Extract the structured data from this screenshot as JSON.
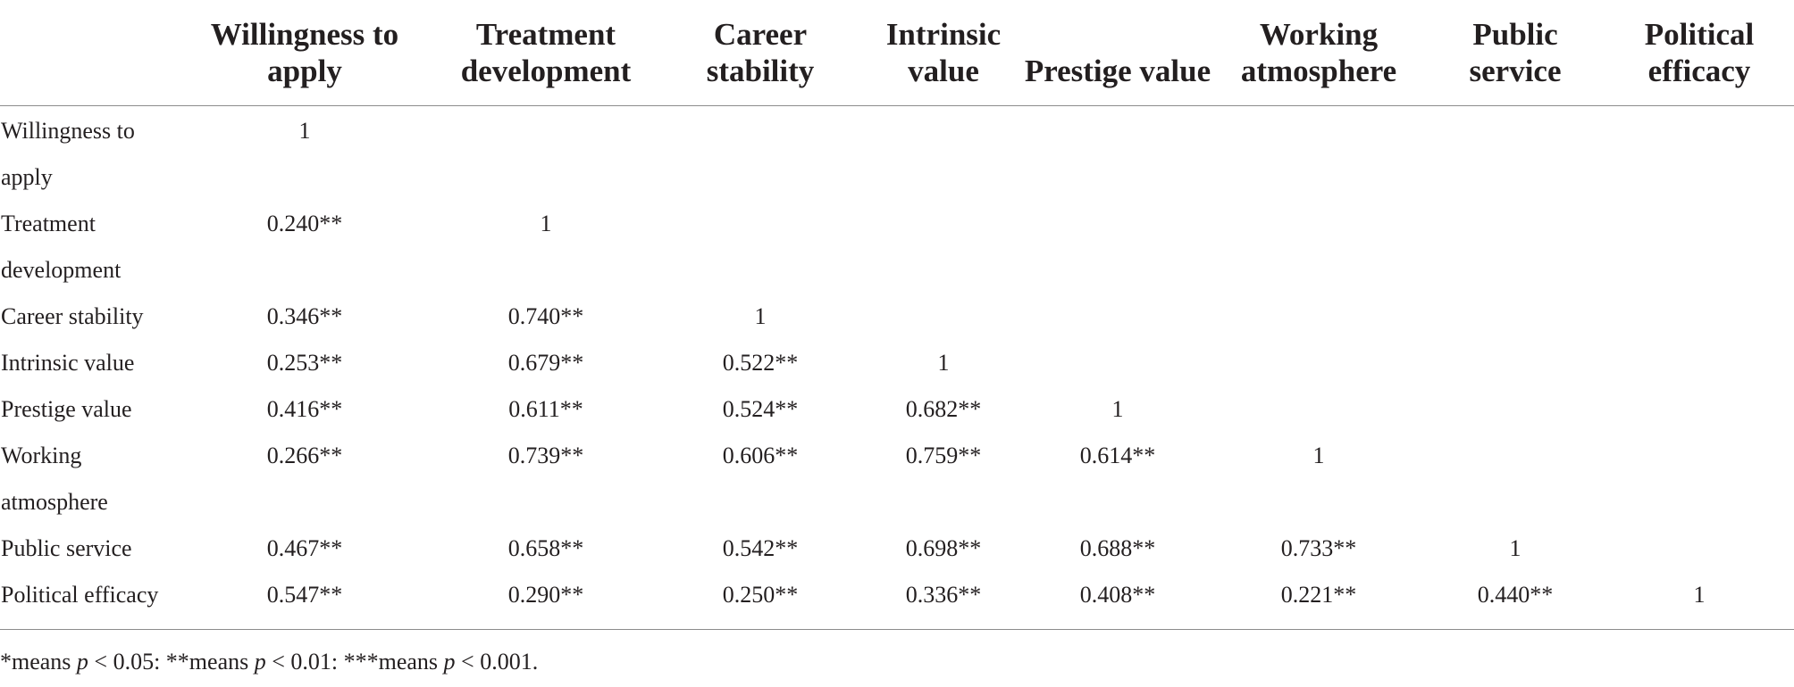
{
  "table": {
    "headers": [
      "",
      "Willingness to apply",
      "Treatment development",
      "Career stability",
      "Intrinsic value",
      "Prestige value",
      "Working atmosphere",
      "Public service",
      "Political efficacy"
    ],
    "rows": [
      {
        "label": "Willingness to apply",
        "cells": [
          "1",
          "",
          "",
          "",
          "",
          "",
          "",
          ""
        ]
      },
      {
        "label": "Treatment development",
        "cells": [
          "0.240**",
          "1",
          "",
          "",
          "",
          "",
          "",
          ""
        ]
      },
      {
        "label": "Career stability",
        "cells": [
          "0.346**",
          "0.740**",
          "1",
          "",
          "",
          "",
          "",
          ""
        ]
      },
      {
        "label": "Intrinsic value",
        "cells": [
          "0.253**",
          "0.679**",
          "0.522**",
          "1",
          "",
          "",
          "",
          ""
        ]
      },
      {
        "label": "Prestige value",
        "cells": [
          "0.416**",
          "0.611**",
          "0.524**",
          "0.682**",
          "1",
          "",
          "",
          ""
        ]
      },
      {
        "label": "Working atmosphere",
        "cells": [
          "0.266**",
          "0.739**",
          "0.606**",
          "0.759**",
          "0.614**",
          "1",
          "",
          ""
        ]
      },
      {
        "label": "Public service",
        "cells": [
          "0.467**",
          "0.658**",
          "0.542**",
          "0.698**",
          "0.688**",
          "0.733**",
          "1",
          ""
        ]
      },
      {
        "label": "Political efficacy",
        "cells": [
          "0.547**",
          "0.290**",
          "0.250**",
          "0.336**",
          "0.408**",
          "0.221**",
          "0.440**",
          "1"
        ]
      }
    ]
  },
  "footnote": {
    "part1": "*means ",
    "p1": "p",
    "part2": " < 0.05: **means ",
    "p2": "p",
    "part3": " < 0.01: ***means ",
    "p3": "p",
    "part4": " < 0.001."
  }
}
